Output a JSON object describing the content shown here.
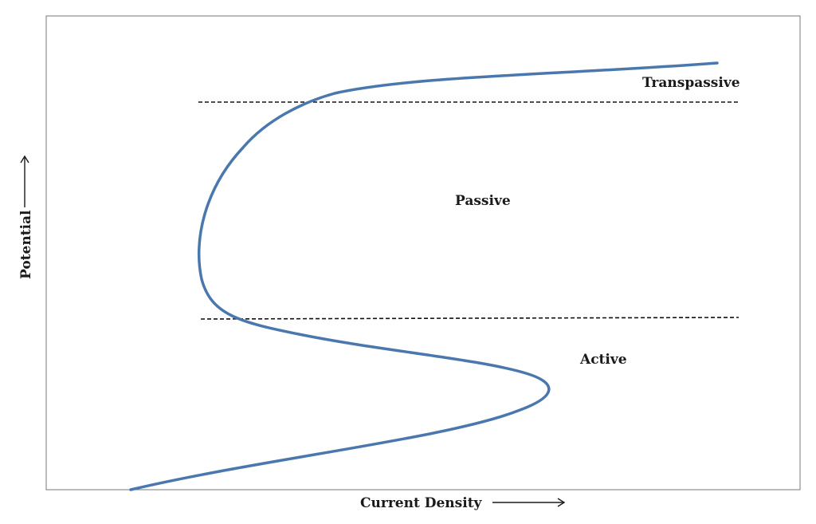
{
  "colors": {
    "curve": "#4a78ae",
    "boundary_line": "#111111",
    "text": "#1a1a1a",
    "frame": "#777777"
  },
  "axes": {
    "x_label": "Current Density",
    "y_label": "Potential",
    "x_arrow_icon": "right-arrow-icon",
    "y_arrow_icon": "up-arrow-icon"
  },
  "regions": {
    "transpassive": "Transpassive",
    "passive": "Passive",
    "active": "Active"
  }
}
